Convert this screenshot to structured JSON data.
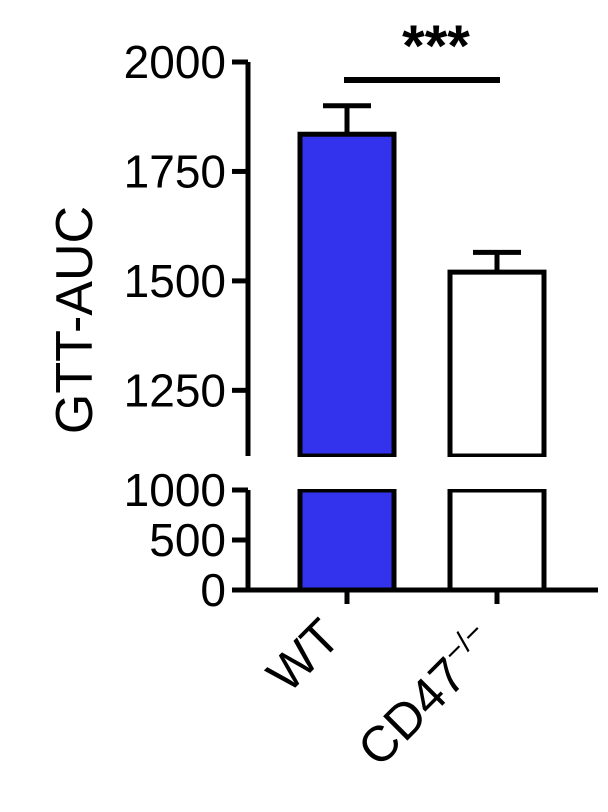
{
  "chart_data": {
    "type": "bar",
    "ylabel": "GTT-AUC",
    "axis_break": true,
    "ylim_lower": [
      0,
      1000
    ],
    "ylim_upper": [
      1100,
      2000
    ],
    "yticks_lower": [
      0,
      500,
      1000
    ],
    "yticks_upper": [
      1250,
      1500,
      1750,
      2000
    ],
    "tick_labels_lower": [
      "0",
      "500",
      "1000"
    ],
    "tick_labels_upper": [
      "1250",
      "1500",
      "1750",
      "2000"
    ],
    "categories": [
      {
        "label": "WT",
        "sup": ""
      },
      {
        "label": "CD47",
        "sup": "−/−"
      }
    ],
    "values": [
      1835,
      1520
    ],
    "errors": [
      65,
      45
    ],
    "bar_colors": [
      "#3333ee",
      "#ffffff"
    ],
    "significance": {
      "label": "***",
      "between": [
        0,
        1
      ]
    },
    "grid": false,
    "legend": "none"
  }
}
